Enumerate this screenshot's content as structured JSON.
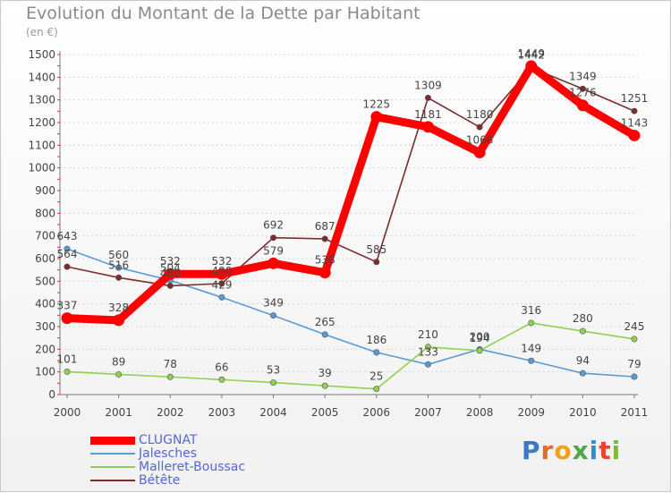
{
  "chart_data": {
    "type": "line",
    "title": "Evolution du Montant de la Dette par Habitant",
    "subtitle": "(en €)",
    "x": [
      "2000",
      "2001",
      "2002",
      "2003",
      "2004",
      "2005",
      "2006",
      "2007",
      "2008",
      "2009",
      "2010",
      "2011"
    ],
    "ylim": [
      0,
      1500
    ],
    "yticks": [
      0,
      100,
      200,
      300,
      400,
      500,
      600,
      700,
      800,
      900,
      1000,
      1100,
      1200,
      1300,
      1400,
      1500
    ],
    "grid": "horizontal",
    "legend_position": "bottom-left",
    "series": [
      {
        "name": "CLUGNAT",
        "color": "#ff0000",
        "values": [
          337,
          328,
          532,
          532,
          579,
          538,
          1225,
          1181,
          1068,
          1449,
          1276,
          1143
        ]
      },
      {
        "name": "Jalesches",
        "color": "#5b9bd5",
        "values": [
          643,
          560,
          504,
          429,
          349,
          265,
          186,
          133,
          200,
          149,
          94,
          79
        ]
      },
      {
        "name": "Malleret-Boussac",
        "color": "#92d050",
        "values": [
          101,
          89,
          78,
          66,
          53,
          39,
          25,
          210,
          194,
          316,
          280,
          245
        ]
      },
      {
        "name": "Bétête",
        "color": "#7b2c2c",
        "values": [
          564,
          516,
          480,
          490,
          692,
          687,
          585,
          1309,
          1180,
          1442,
          1349,
          1251
        ]
      }
    ]
  },
  "logo": {
    "text": "Proxiti"
  }
}
